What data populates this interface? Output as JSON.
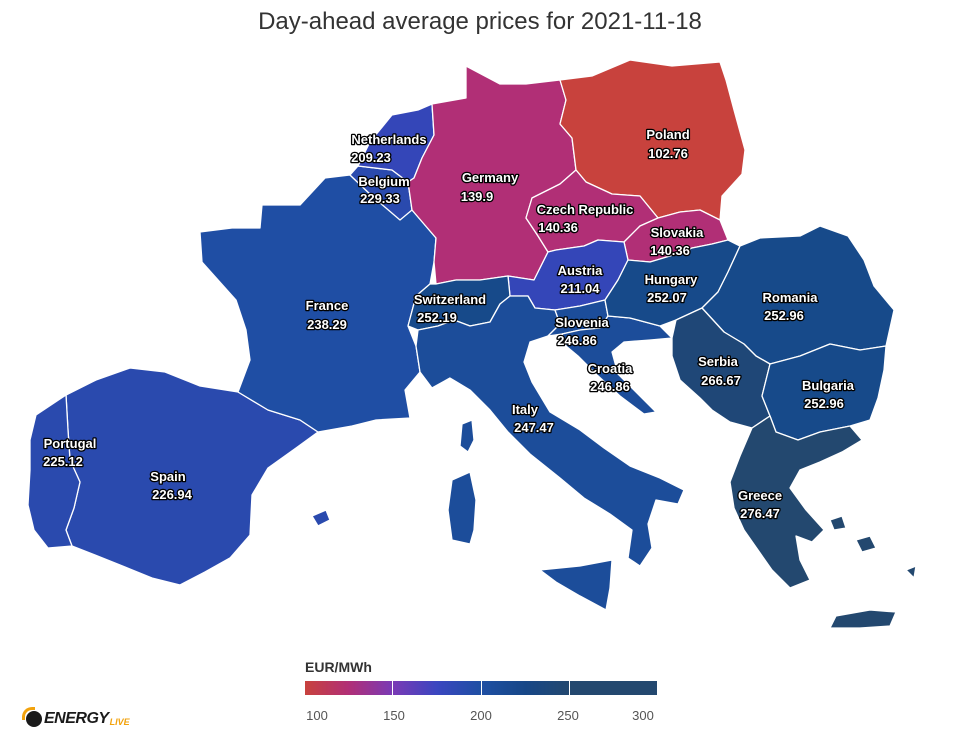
{
  "title": "Day-ahead average prices for 2021-11-18",
  "legend": {
    "title": "EUR/MWh",
    "colors": [
      "#c8423d",
      "#b12f76",
      "#7a3ab5",
      "#3a46c0",
      "#1e4fa3",
      "#174787",
      "#23486f"
    ],
    "ticks": [
      "100",
      "150",
      "200",
      "250",
      "300"
    ]
  },
  "countries": [
    {
      "id": "poland",
      "name": "Poland",
      "value": "102.76",
      "color": "#c8423d"
    },
    {
      "id": "germany",
      "name": "Germany",
      "value": "139.9",
      "color": "#b12f76"
    },
    {
      "id": "czech-republic",
      "name": "Czech Republic",
      "value": "140.36",
      "color": "#b12f76"
    },
    {
      "id": "slovakia",
      "name": "Slovakia",
      "value": "140.36",
      "color": "#b12f76"
    },
    {
      "id": "netherlands",
      "name": "Netherlands",
      "value": "209.23",
      "color": "#3446b8"
    },
    {
      "id": "austria",
      "name": "Austria",
      "value": "211.04",
      "color": "#3446b8"
    },
    {
      "id": "portugal",
      "name": "Portugal",
      "value": "225.12",
      "color": "#2a4aae"
    },
    {
      "id": "spain",
      "name": "Spain",
      "value": "226.94",
      "color": "#2a4aae"
    },
    {
      "id": "belgium",
      "name": "Belgium",
      "value": "229.33",
      "color": "#2a4aae"
    },
    {
      "id": "france",
      "name": "France",
      "value": "238.29",
      "color": "#1f4ea4"
    },
    {
      "id": "slovenia",
      "name": "Slovenia",
      "value": "246.86",
      "color": "#1c4d9a"
    },
    {
      "id": "croatia",
      "name": "Croatia",
      "value": "246.86",
      "color": "#1c4d9a"
    },
    {
      "id": "italy",
      "name": "Italy",
      "value": "247.47",
      "color": "#1c4d9a"
    },
    {
      "id": "hungary",
      "name": "Hungary",
      "value": "252.07",
      "color": "#174a8a"
    },
    {
      "id": "switzerland",
      "name": "Switzerland",
      "value": "252.19",
      "color": "#174a8a"
    },
    {
      "id": "romania",
      "name": "Romania",
      "value": "252.96",
      "color": "#174a8a"
    },
    {
      "id": "bulgaria",
      "name": "Bulgaria",
      "value": "252.96",
      "color": "#174a8a"
    },
    {
      "id": "serbia",
      "name": "Serbia",
      "value": "266.67",
      "color": "#1f4777"
    },
    {
      "id": "greece",
      "name": "Greece",
      "value": "276.47",
      "color": "#23486f"
    }
  ],
  "logo": {
    "text": "ENERGY",
    "suffix": "LIVE"
  }
}
